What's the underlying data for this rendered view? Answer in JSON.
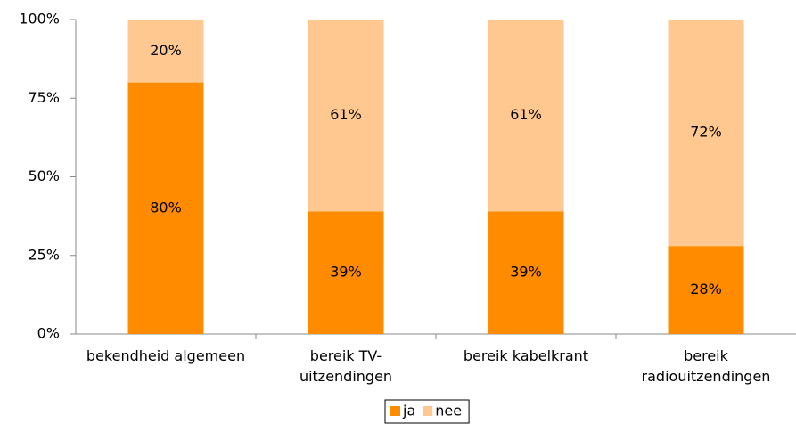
{
  "chart_data": {
    "type": "stacked_bar",
    "categories": [
      "bekendheid algemeen",
      "bereik TV-uitzendingen",
      "bereik kabelkrant",
      "bereik radiouitzendingen"
    ],
    "series": [
      {
        "name": "ja",
        "color": "#ff8c00",
        "values": [
          80,
          39,
          39,
          28
        ],
        "value_labels": [
          "80%",
          "39%",
          "39%",
          "28%"
        ]
      },
      {
        "name": "nee",
        "color": "#ffc890",
        "values": [
          20,
          61,
          61,
          72
        ],
        "value_labels": [
          "20%",
          "61%",
          "61%",
          "72%"
        ]
      }
    ],
    "ylim": [
      0,
      100
    ],
    "yticks": [
      {
        "value": 0,
        "label": "0%"
      },
      {
        "value": 25,
        "label": "25%"
      },
      {
        "value": 50,
        "label": "50%"
      },
      {
        "value": 75,
        "label": "75%"
      },
      {
        "value": 100,
        "label": "100%"
      }
    ],
    "legend": "bottom"
  }
}
